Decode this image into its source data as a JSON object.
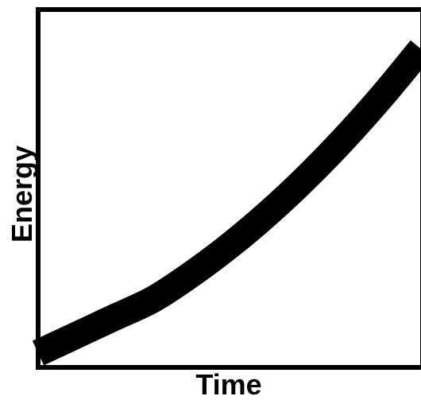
{
  "chart_data": {
    "type": "line",
    "title": "",
    "xlabel": "Time",
    "ylabel": "Energy",
    "xlim": [
      0,
      1
    ],
    "ylim": [
      0,
      1
    ],
    "grid": false,
    "legend": "none",
    "x_ticks_shown": false,
    "y_ticks_shown": false,
    "series": [
      {
        "x": [
          0,
          0.1,
          0.2,
          0.3,
          0.4,
          0.5,
          0.6,
          0.7,
          0.8,
          0.9,
          1.0
        ],
        "y": [
          0.04,
          0.09,
          0.14,
          0.19,
          0.26,
          0.34,
          0.43,
          0.53,
          0.64,
          0.76,
          0.89
        ]
      }
    ],
    "colors": {
      "line": "#000000",
      "frame": "#000000",
      "background": "#ffffff"
    }
  }
}
